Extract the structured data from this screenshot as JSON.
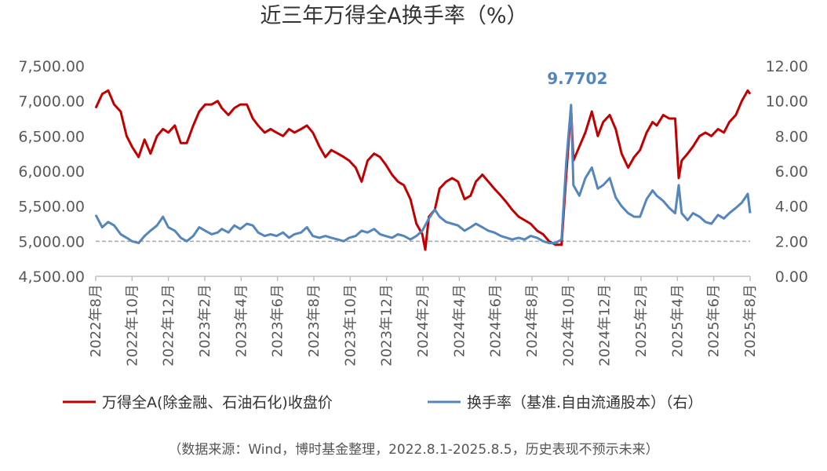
{
  "chart_data": {
    "type": "line",
    "title": "近三年万得全A换手率（%）",
    "y_left": {
      "range": [
        4500,
        7500
      ],
      "ticks": [
        "7,500.00",
        "7,000.00",
        "6,500.00",
        "6,000.00",
        "5,500.00",
        "5,000.00",
        "4,500.00"
      ]
    },
    "y_right": {
      "range": [
        0,
        12
      ],
      "ticks": [
        "12.00",
        "10.00",
        "8.00",
        "6.00",
        "4.00",
        "2.00",
        "0.00"
      ]
    },
    "x_ticks": [
      "2022年8月",
      "2022年10月",
      "2022年12月",
      "2023年2月",
      "2023年4月",
      "2023年6月",
      "2023年8月",
      "2023年10月",
      "2023年12月",
      "2024年2月",
      "2024年4月",
      "2024年6月",
      "2024年8月",
      "2024年10月",
      "2024年12月",
      "2025年2月",
      "2025年4月",
      "2025年6月",
      "2025年8月"
    ],
    "annotation": {
      "text": "9.7702",
      "x": "2024-10-08",
      "y": 9.7702
    },
    "reference_line_right_axis": 2.0,
    "series": [
      {
        "name": "万得全A(除金融、石油石化)收盘价",
        "axis": "left",
        "color": "#c00000",
        "points": [
          [
            "2022-08-01",
            6900
          ],
          [
            "2022-08-12",
            7100
          ],
          [
            "2022-08-22",
            7150
          ],
          [
            "2022-09-01",
            6950
          ],
          [
            "2022-09-12",
            6850
          ],
          [
            "2022-09-22",
            6500
          ],
          [
            "2022-10-01",
            6350
          ],
          [
            "2022-10-12",
            6200
          ],
          [
            "2022-10-22",
            6450
          ],
          [
            "2022-11-01",
            6250
          ],
          [
            "2022-11-12",
            6500
          ],
          [
            "2022-11-22",
            6600
          ],
          [
            "2022-12-01",
            6550
          ],
          [
            "2022-12-12",
            6650
          ],
          [
            "2022-12-22",
            6400
          ],
          [
            "2023-01-01",
            6400
          ],
          [
            "2023-01-12",
            6650
          ],
          [
            "2023-01-22",
            6850
          ],
          [
            "2023-02-01",
            6950
          ],
          [
            "2023-02-12",
            6950
          ],
          [
            "2023-02-22",
            7000
          ],
          [
            "2023-03-01",
            6900
          ],
          [
            "2023-03-12",
            6800
          ],
          [
            "2023-03-22",
            6900
          ],
          [
            "2023-04-01",
            6950
          ],
          [
            "2023-04-12",
            6950
          ],
          [
            "2023-04-22",
            6750
          ],
          [
            "2023-05-01",
            6650
          ],
          [
            "2023-05-12",
            6550
          ],
          [
            "2023-05-22",
            6600
          ],
          [
            "2023-06-01",
            6550
          ],
          [
            "2023-06-12",
            6500
          ],
          [
            "2023-06-22",
            6600
          ],
          [
            "2023-07-01",
            6550
          ],
          [
            "2023-07-12",
            6600
          ],
          [
            "2023-07-22",
            6650
          ],
          [
            "2023-08-01",
            6550
          ],
          [
            "2023-08-12",
            6350
          ],
          [
            "2023-08-22",
            6200
          ],
          [
            "2023-09-01",
            6300
          ],
          [
            "2023-09-12",
            6250
          ],
          [
            "2023-09-22",
            6200
          ],
          [
            "2023-10-01",
            6150
          ],
          [
            "2023-10-12",
            6050
          ],
          [
            "2023-10-22",
            5850
          ],
          [
            "2023-11-01",
            6150
          ],
          [
            "2023-11-12",
            6250
          ],
          [
            "2023-11-22",
            6200
          ],
          [
            "2023-12-01",
            6100
          ],
          [
            "2023-12-12",
            5950
          ],
          [
            "2023-12-22",
            5850
          ],
          [
            "2024-01-01",
            5800
          ],
          [
            "2024-01-12",
            5600
          ],
          [
            "2024-01-22",
            5250
          ],
          [
            "2024-02-01",
            5100
          ],
          [
            "2024-02-06",
            4880
          ],
          [
            "2024-02-12",
            5350
          ],
          [
            "2024-02-22",
            5450
          ],
          [
            "2024-03-01",
            5750
          ],
          [
            "2024-03-12",
            5850
          ],
          [
            "2024-03-22",
            5900
          ],
          [
            "2024-04-01",
            5850
          ],
          [
            "2024-04-12",
            5600
          ],
          [
            "2024-04-22",
            5650
          ],
          [
            "2024-05-01",
            5850
          ],
          [
            "2024-05-12",
            5950
          ],
          [
            "2024-05-22",
            5850
          ],
          [
            "2024-06-01",
            5750
          ],
          [
            "2024-06-12",
            5650
          ],
          [
            "2024-06-22",
            5550
          ],
          [
            "2024-07-01",
            5450
          ],
          [
            "2024-07-12",
            5350
          ],
          [
            "2024-07-22",
            5300
          ],
          [
            "2024-08-01",
            5250
          ],
          [
            "2024-08-12",
            5150
          ],
          [
            "2024-08-22",
            5100
          ],
          [
            "2024-09-01",
            5000
          ],
          [
            "2024-09-12",
            4950
          ],
          [
            "2024-09-22",
            4950
          ],
          [
            "2024-09-30",
            5950
          ],
          [
            "2024-10-08",
            6900
          ],
          [
            "2024-10-12",
            6150
          ],
          [
            "2024-10-22",
            6350
          ],
          [
            "2024-11-01",
            6550
          ],
          [
            "2024-11-12",
            6850
          ],
          [
            "2024-11-22",
            6500
          ],
          [
            "2024-12-01",
            6700
          ],
          [
            "2024-12-12",
            6800
          ],
          [
            "2024-12-22",
            6600
          ],
          [
            "2025-01-01",
            6250
          ],
          [
            "2025-01-12",
            6050
          ],
          [
            "2025-01-22",
            6200
          ],
          [
            "2025-02-01",
            6300
          ],
          [
            "2025-02-12",
            6550
          ],
          [
            "2025-02-22",
            6700
          ],
          [
            "2025-03-01",
            6650
          ],
          [
            "2025-03-12",
            6800
          ],
          [
            "2025-03-22",
            6750
          ],
          [
            "2025-04-01",
            6750
          ],
          [
            "2025-04-07",
            5900
          ],
          [
            "2025-04-12",
            6150
          ],
          [
            "2025-04-22",
            6250
          ],
          [
            "2025-05-01",
            6350
          ],
          [
            "2025-05-12",
            6500
          ],
          [
            "2025-05-22",
            6550
          ],
          [
            "2025-06-01",
            6500
          ],
          [
            "2025-06-12",
            6600
          ],
          [
            "2025-06-22",
            6550
          ],
          [
            "2025-07-01",
            6700
          ],
          [
            "2025-07-12",
            6800
          ],
          [
            "2025-07-22",
            7000
          ],
          [
            "2025-08-01",
            7150
          ],
          [
            "2025-08-05",
            7100
          ]
        ]
      },
      {
        "name": "换手率（基准.自由流通股本）（右）",
        "axis": "right",
        "color": "#5585bd",
        "points": [
          [
            "2022-08-01",
            3.5
          ],
          [
            "2022-08-12",
            2.8
          ],
          [
            "2022-08-22",
            3.1
          ],
          [
            "2022-09-01",
            2.9
          ],
          [
            "2022-09-12",
            2.4
          ],
          [
            "2022-09-22",
            2.2
          ],
          [
            "2022-10-01",
            2.0
          ],
          [
            "2022-10-12",
            1.9
          ],
          [
            "2022-10-22",
            2.3
          ],
          [
            "2022-11-01",
            2.6
          ],
          [
            "2022-11-12",
            2.9
          ],
          [
            "2022-11-22",
            3.4
          ],
          [
            "2022-12-01",
            2.8
          ],
          [
            "2022-12-12",
            2.6
          ],
          [
            "2022-12-22",
            2.2
          ],
          [
            "2023-01-01",
            2.0
          ],
          [
            "2023-01-12",
            2.3
          ],
          [
            "2023-01-22",
            2.8
          ],
          [
            "2023-02-01",
            2.6
          ],
          [
            "2023-02-12",
            2.4
          ],
          [
            "2023-02-22",
            2.5
          ],
          [
            "2023-03-01",
            2.7
          ],
          [
            "2023-03-12",
            2.5
          ],
          [
            "2023-03-22",
            2.9
          ],
          [
            "2023-04-01",
            2.7
          ],
          [
            "2023-04-12",
            3.0
          ],
          [
            "2023-04-22",
            2.9
          ],
          [
            "2023-05-01",
            2.5
          ],
          [
            "2023-05-12",
            2.3
          ],
          [
            "2023-05-22",
            2.4
          ],
          [
            "2023-06-01",
            2.3
          ],
          [
            "2023-06-12",
            2.5
          ],
          [
            "2023-06-22",
            2.2
          ],
          [
            "2023-07-01",
            2.4
          ],
          [
            "2023-07-12",
            2.5
          ],
          [
            "2023-07-22",
            2.8
          ],
          [
            "2023-08-01",
            2.3
          ],
          [
            "2023-08-12",
            2.2
          ],
          [
            "2023-08-22",
            2.3
          ],
          [
            "2023-09-01",
            2.2
          ],
          [
            "2023-09-12",
            2.1
          ],
          [
            "2023-09-22",
            2.0
          ],
          [
            "2023-10-01",
            2.2
          ],
          [
            "2023-10-12",
            2.3
          ],
          [
            "2023-10-22",
            2.6
          ],
          [
            "2023-11-01",
            2.5
          ],
          [
            "2023-11-12",
            2.7
          ],
          [
            "2023-11-22",
            2.4
          ],
          [
            "2023-12-01",
            2.3
          ],
          [
            "2023-12-12",
            2.2
          ],
          [
            "2023-12-22",
            2.4
          ],
          [
            "2024-01-01",
            2.3
          ],
          [
            "2024-01-12",
            2.1
          ],
          [
            "2024-01-22",
            2.3
          ],
          [
            "2024-02-01",
            2.6
          ],
          [
            "2024-02-12",
            3.3
          ],
          [
            "2024-02-22",
            3.8
          ],
          [
            "2024-03-01",
            3.4
          ],
          [
            "2024-03-12",
            3.1
          ],
          [
            "2024-03-22",
            3.0
          ],
          [
            "2024-04-01",
            2.9
          ],
          [
            "2024-04-12",
            2.6
          ],
          [
            "2024-04-22",
            2.8
          ],
          [
            "2024-05-01",
            3.0
          ],
          [
            "2024-05-12",
            2.8
          ],
          [
            "2024-05-22",
            2.6
          ],
          [
            "2024-06-01",
            2.5
          ],
          [
            "2024-06-12",
            2.3
          ],
          [
            "2024-06-22",
            2.2
          ],
          [
            "2024-07-01",
            2.1
          ],
          [
            "2024-07-12",
            2.2
          ],
          [
            "2024-07-22",
            2.1
          ],
          [
            "2024-08-01",
            2.3
          ],
          [
            "2024-08-12",
            2.2
          ],
          [
            "2024-08-22",
            2.0
          ],
          [
            "2024-09-01",
            1.9
          ],
          [
            "2024-09-12",
            1.9
          ],
          [
            "2024-09-22",
            2.1
          ],
          [
            "2024-09-30",
            6.5
          ],
          [
            "2024-10-08",
            9.7702
          ],
          [
            "2024-10-12",
            5.2
          ],
          [
            "2024-10-22",
            4.6
          ],
          [
            "2024-11-01",
            5.6
          ],
          [
            "2024-11-12",
            6.2
          ],
          [
            "2024-11-22",
            5.0
          ],
          [
            "2024-12-01",
            5.2
          ],
          [
            "2024-12-12",
            5.6
          ],
          [
            "2024-12-22",
            4.5
          ],
          [
            "2025-01-01",
            4.0
          ],
          [
            "2025-01-12",
            3.6
          ],
          [
            "2025-01-22",
            3.4
          ],
          [
            "2025-02-01",
            3.4
          ],
          [
            "2025-02-12",
            4.4
          ],
          [
            "2025-02-22",
            4.9
          ],
          [
            "2025-03-01",
            4.6
          ],
          [
            "2025-03-12",
            4.3
          ],
          [
            "2025-03-22",
            3.9
          ],
          [
            "2025-04-01",
            3.6
          ],
          [
            "2025-04-07",
            5.2
          ],
          [
            "2025-04-12",
            3.6
          ],
          [
            "2025-04-22",
            3.2
          ],
          [
            "2025-05-01",
            3.6
          ],
          [
            "2025-05-12",
            3.4
          ],
          [
            "2025-05-22",
            3.1
          ],
          [
            "2025-06-01",
            3.0
          ],
          [
            "2025-06-12",
            3.5
          ],
          [
            "2025-06-22",
            3.3
          ],
          [
            "2025-07-01",
            3.6
          ],
          [
            "2025-07-12",
            3.9
          ],
          [
            "2025-07-22",
            4.2
          ],
          [
            "2025-08-01",
            4.7
          ],
          [
            "2025-08-05",
            3.6
          ]
        ]
      }
    ],
    "legend": [
      {
        "label": "万得全A(除金融、石油石化)收盘价",
        "color": "#c00000"
      },
      {
        "label": "换手率（基准.自由流通股本）（右）",
        "color": "#5585bd"
      }
    ],
    "legend_position": "bottom",
    "source_note": "（数据来源：Wind，博时基金整理，2022.8.1-2025.8.5，历史表现不预示未来）"
  }
}
